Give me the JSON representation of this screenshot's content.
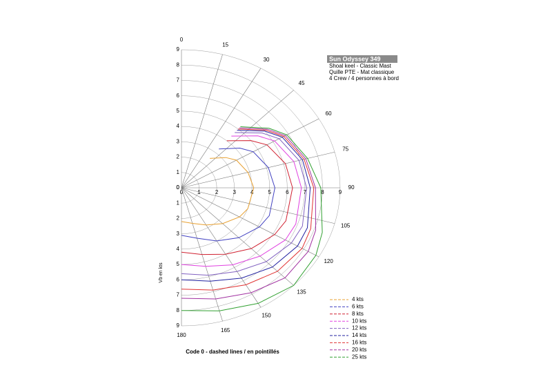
{
  "chart_data": {
    "type": "polar",
    "title": "Sun Odyssey 349",
    "subtitle": [
      "Shoal keel - Classic Mast",
      "Quille PTE - Mat classique",
      "4 Crew / 4 personnes à bord"
    ],
    "footer": "Code 0 - dashed lines / en pointillés",
    "ylabel": "Vb en kts",
    "rlim": [
      0,
      9
    ],
    "rticks": [
      0,
      1,
      2,
      3,
      4,
      5,
      6,
      7,
      8,
      9
    ],
    "angle_ticks": [
      0,
      15,
      30,
      45,
      60,
      75,
      90,
      105,
      120,
      135,
      150,
      165,
      180
    ],
    "x": [
      40,
      52,
      60,
      75,
      90,
      110,
      120,
      135,
      150,
      165,
      180
    ],
    "series": [
      {
        "name": "4 kts",
        "color": "#e8a030",
        "values": [
          2.5,
          3.2,
          3.6,
          3.9,
          4.1,
          4.0,
          3.8,
          3.3,
          2.8,
          2.4,
          2.2
        ]
      },
      {
        "name": "6 kts",
        "color": "#4040c0",
        "values": [
          3.3,
          4.2,
          4.7,
          5.1,
          5.3,
          5.3,
          5.1,
          4.6,
          4.0,
          3.4,
          3.1
        ]
      },
      {
        "name": "8 kts",
        "color": "#d02030",
        "values": [
          4.0,
          5.0,
          5.6,
          6.1,
          6.3,
          6.3,
          6.1,
          5.6,
          5.0,
          4.5,
          4.2
        ]
      },
      {
        "name": "10 kts",
        "color": "#e040e0",
        "values": [
          4.4,
          5.5,
          6.1,
          6.6,
          6.8,
          6.9,
          6.8,
          6.3,
          5.8,
          5.3,
          5.0
        ]
      },
      {
        "name": "12 kts",
        "color": "#8060c0",
        "values": [
          4.7,
          5.8,
          6.4,
          6.9,
          7.1,
          7.3,
          7.2,
          6.8,
          6.3,
          5.9,
          5.6
        ]
      },
      {
        "name": "14 kts",
        "color": "#2020a0",
        "values": [
          4.9,
          6.0,
          6.6,
          7.1,
          7.3,
          7.6,
          7.6,
          7.3,
          6.8,
          6.3,
          6.0
        ]
      },
      {
        "name": "16 kts",
        "color": "#e03030",
        "values": [
          5.0,
          6.1,
          6.7,
          7.2,
          7.5,
          7.8,
          7.9,
          7.7,
          7.3,
          6.9,
          6.6
        ]
      },
      {
        "name": "20 kts",
        "color": "#a030a0",
        "values": [
          5.1,
          6.2,
          6.8,
          7.3,
          7.6,
          8.1,
          8.3,
          8.3,
          7.9,
          7.5,
          7.2
        ]
      },
      {
        "name": "25 kts",
        "color": "#30a030",
        "values": [
          5.2,
          6.3,
          6.9,
          7.4,
          7.9,
          8.5,
          8.8,
          9.0,
          8.7,
          8.3,
          8.0
        ]
      }
    ]
  }
}
